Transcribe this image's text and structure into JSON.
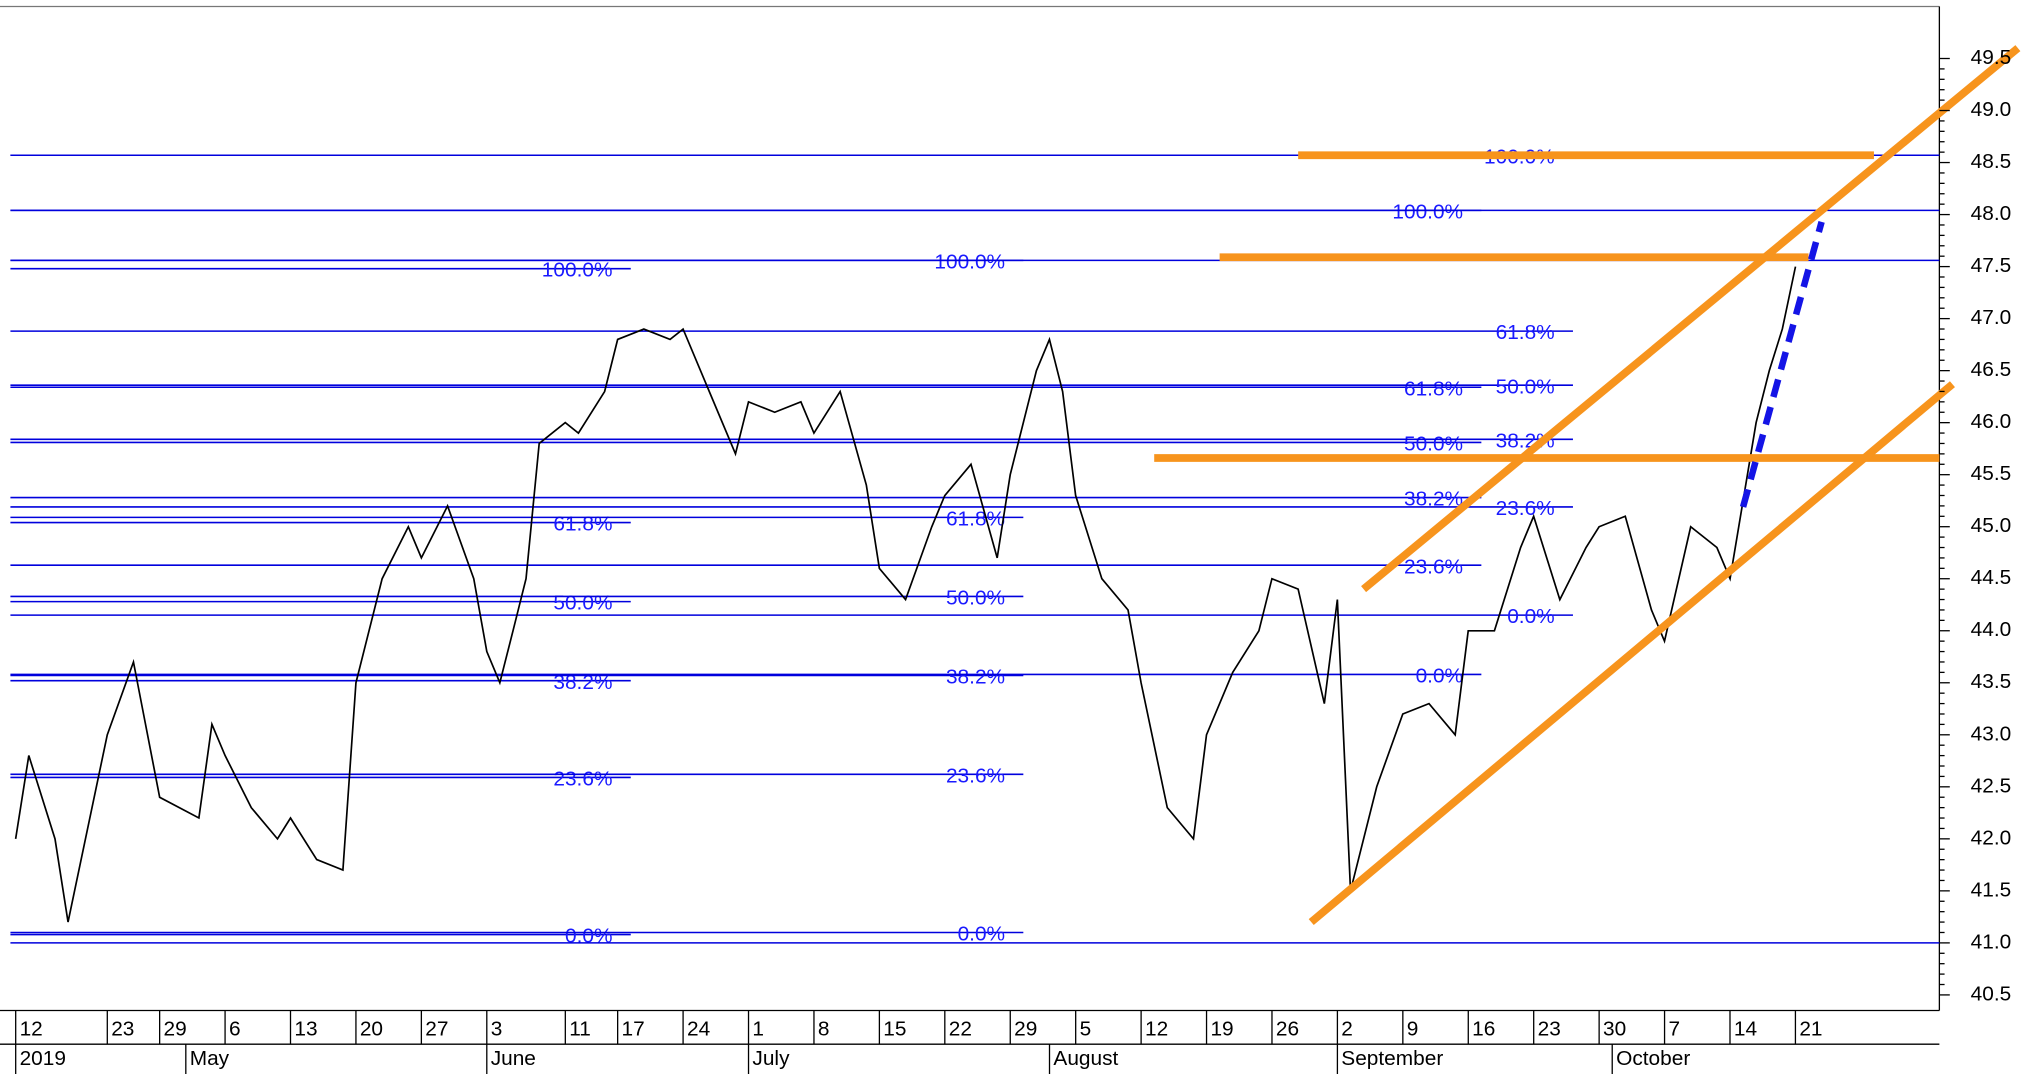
{
  "chart_data": {
    "type": "line",
    "color": "#000000",
    "xlim": [
      "2019-04-11",
      "2019-11-05"
    ],
    "ylim": [
      40.35,
      50.0
    ],
    "yticks": [
      40.5,
      {
        "value": 41,
        "label": "41.0"
      },
      41.5,
      {
        "value": 42,
        "label": "42.0"
      },
      42.5,
      {
        "value": 43,
        "label": "43.0"
      },
      43.5,
      {
        "value": 44,
        "label": "44.0"
      },
      44.5,
      {
        "value": 45,
        "label": "45.0"
      },
      45.5,
      {
        "value": 46,
        "label": "46.0"
      },
      46.5,
      {
        "value": 47,
        "label": "47.0"
      },
      47.5,
      {
        "value": 48,
        "label": "48.0"
      },
      48.5,
      {
        "value": 49,
        "label": "49.0"
      },
      49.5
    ],
    "xticks": [
      {
        "value": "2019-04-12",
        "label": "12"
      },
      {
        "value": "2019-04-23",
        "label": "23"
      },
      {
        "value": "2019-04-29",
        "label": "29"
      },
      {
        "value": "2019-05-06",
        "label": "6"
      },
      {
        "value": "2019-05-13",
        "label": "13"
      },
      {
        "value": "2019-05-20",
        "label": "20"
      },
      {
        "value": "2019-05-27",
        "label": "27"
      },
      {
        "value": "2019-06-03",
        "label": "3"
      },
      {
        "value": "2019-06-11",
        "label": "11"
      },
      {
        "value": "2019-06-17",
        "label": "17"
      },
      {
        "value": "2019-06-24",
        "label": "24"
      },
      {
        "value": "2019-07-01",
        "label": "1"
      },
      {
        "value": "2019-07-08",
        "label": "8"
      },
      {
        "value": "2019-07-15",
        "label": "15"
      },
      {
        "value": "2019-07-22",
        "label": "22"
      },
      {
        "value": "2019-07-29",
        "label": "29"
      },
      {
        "value": "2019-08-05",
        "label": "5"
      },
      {
        "value": "2019-08-12",
        "label": "12"
      },
      {
        "value": "2019-08-19",
        "label": "19"
      },
      {
        "value": "2019-08-26",
        "label": "26"
      },
      {
        "value": "2019-09-02",
        "label": "2"
      },
      {
        "value": "2019-09-09",
        "label": "9"
      },
      {
        "value": "2019-09-16",
        "label": "16"
      },
      {
        "value": "2019-09-23",
        "label": "23"
      },
      {
        "value": "2019-09-30",
        "label": "30"
      },
      {
        "value": "2019-10-07",
        "label": "7"
      },
      {
        "value": "2019-10-14",
        "label": "14"
      },
      {
        "value": "2019-10-21",
        "label": "21"
      }
    ],
    "month_labels": [
      {
        "value": "2019-04-12",
        "label": "2019"
      },
      {
        "value": "2019-05-01",
        "label": "May"
      },
      {
        "value": "2019-06-03",
        "label": "June"
      },
      {
        "value": "2019-07-01",
        "label": "July"
      },
      {
        "value": "2019-08-01",
        "label": "August"
      },
      {
        "value": "2019-09-02",
        "label": "September"
      },
      {
        "value": "2019-10-01",
        "label": "October"
      }
    ],
    "x": [
      "2019-04-12",
      "2019-04-15",
      "2019-04-17",
      "2019-04-18",
      "2019-04-23",
      "2019-04-25",
      "2019-04-29",
      "2019-05-02",
      "2019-05-03",
      "2019-05-06",
      "2019-05-08",
      "2019-05-10",
      "2019-05-13",
      "2019-05-15",
      "2019-05-17",
      "2019-05-20",
      "2019-05-22",
      "2019-05-24",
      "2019-05-27",
      "2019-05-29",
      "2019-05-31",
      "2019-06-03",
      "2019-06-04",
      "2019-06-05",
      "2019-06-06",
      "2019-06-07",
      "2019-06-11",
      "2019-06-12",
      "2019-06-14",
      "2019-06-17",
      "2019-06-19",
      "2019-06-21",
      "2019-06-24",
      "2019-06-26",
      "2019-06-28",
      "2019-07-01",
      "2019-07-03",
      "2019-07-05",
      "2019-07-08",
      "2019-07-10",
      "2019-07-12",
      "2019-07-15",
      "2019-07-17",
      "2019-07-19",
      "2019-07-22",
      "2019-07-24",
      "2019-07-26",
      "2019-07-29",
      "2019-07-31",
      "2019-08-01",
      "2019-08-02",
      "2019-08-05",
      "2019-08-07",
      "2019-08-09",
      "2019-08-12",
      "2019-08-14",
      "2019-08-16",
      "2019-08-19",
      "2019-08-21",
      "2019-08-23",
      "2019-08-26",
      "2019-08-28",
      "2019-08-30",
      "2019-09-02",
      "2019-09-03",
      "2019-09-05",
      "2019-09-09",
      "2019-09-11",
      "2019-09-13",
      "2019-09-16",
      "2019-09-18",
      "2019-09-20",
      "2019-09-23",
      "2019-09-25",
      "2019-09-27",
      "2019-09-30",
      "2019-10-02",
      "2019-10-04",
      "2019-10-07",
      "2019-10-09",
      "2019-10-11",
      "2019-10-14",
      "2019-10-16",
      "2019-10-17",
      "2019-10-18",
      "2019-10-21"
    ],
    "values": [
      42.0,
      42.8,
      42.0,
      41.2,
      43.0,
      43.7,
      42.4,
      42.2,
      43.1,
      42.8,
      42.3,
      42.0,
      42.2,
      41.8,
      41.7,
      43.5,
      44.5,
      45.0,
      44.7,
      45.2,
      44.5,
      43.8,
      43.5,
      44.0,
      44.5,
      45.8,
      46.0,
      45.9,
      46.3,
      46.8,
      46.9,
      46.8,
      46.9,
      46.3,
      45.7,
      46.2,
      46.1,
      46.2,
      45.9,
      46.3,
      45.4,
      44.6,
      44.3,
      45.0,
      45.3,
      45.6,
      44.7,
      45.5,
      46.5,
      46.8,
      46.3,
      45.3,
      44.5,
      44.2,
      43.5,
      42.3,
      42.0,
      43.0,
      43.6,
      44.0,
      44.5,
      44.4,
      43.3,
      44.3,
      41.5,
      42.5,
      43.2,
      43.3,
      43.0,
      44.0,
      44.0,
      44.8,
      45.1,
      44.3,
      44.8,
      45.0,
      45.1,
      44.2,
      43.9,
      45.0,
      44.8,
      44.5,
      46.0,
      46.5,
      46.9,
      47.5
    ],
    "fib_sets": [
      {
        "end": "2019-06-18",
        "levels": [
          {
            "label": "100.0%",
            "value": 47.48
          },
          {
            "label": "61.8%",
            "value": 45.04
          },
          {
            "label": "50.0%",
            "value": 44.28
          },
          {
            "label": "38.2%",
            "value": 43.52
          },
          {
            "label": "23.6%",
            "value": 42.59
          },
          {
            "label": "0.0%",
            "value": 41.08
          }
        ]
      },
      {
        "end": "2019-07-30",
        "levels": [
          {
            "label": "100.0%",
            "value": 47.56
          },
          {
            "label": "61.8%",
            "value": 45.09
          },
          {
            "label": "50.0%",
            "value": 44.33
          },
          {
            "label": "38.2%",
            "value": 43.57
          },
          {
            "label": "23.6%",
            "value": 42.62
          },
          {
            "label": "0.0%",
            "value": 41.1
          }
        ]
      },
      {
        "end": "2019-09-17",
        "levels": [
          {
            "label": "100.0%",
            "value": 48.04
          },
          {
            "label": "61.8%",
            "value": 46.34
          },
          {
            "label": "50.0%",
            "value": 45.81
          },
          {
            "label": "38.2%",
            "value": 45.28
          },
          {
            "label": "23.6%",
            "value": 44.63
          },
          {
            "label": "0.0%",
            "value": 43.58
          }
        ]
      },
      {
        "end": "2019-09-26",
        "levels": [
          {
            "label": "100.0%",
            "value": 48.57
          },
          {
            "label": "61.8%",
            "value": 46.88
          },
          {
            "label": "50.0%",
            "value": 46.36
          },
          {
            "label": "38.2%",
            "value": 45.84
          },
          {
            "label": "23.6%",
            "value": 45.19
          },
          {
            "label": "0.0%",
            "value": 44.15
          }
        ]
      }
    ],
    "fib_color": "#0000dd",
    "horizontal_lines": [
      48.57,
      48.04,
      47.56,
      41.0
    ],
    "trend_lines": [
      {
        "x": [
          "2019-08-28",
          "2019-10-29"
        ],
        "values": [
          48.57,
          48.57
        ],
        "color": "#f7941d",
        "dashed": false
      },
      {
        "x": [
          "2019-08-20",
          "2019-10-22"
        ],
        "values": [
          47.59,
          47.59
        ],
        "color": "#f7941d",
        "dashed": false
      },
      {
        "x": [
          "2019-08-13",
          "2019-11-05"
        ],
        "values": [
          45.66,
          45.66
        ],
        "color": "#f7941d",
        "dashed": false
      },
      {
        "x": [
          "2019-09-04",
          "2019-11-13"
        ],
        "values": [
          44.4,
          49.6
        ],
        "color": "#f7941d",
        "dashed": false
      },
      {
        "x": [
          "2019-08-29",
          "2019-11-06"
        ],
        "values": [
          41.2,
          46.37
        ],
        "color": "#f7941d",
        "dashed": false
      },
      {
        "x": [
          "2019-10-15",
          "2019-10-23"
        ],
        "values": [
          45.19,
          47.93
        ],
        "color": "#1414e6",
        "dashed": true
      }
    ]
  }
}
